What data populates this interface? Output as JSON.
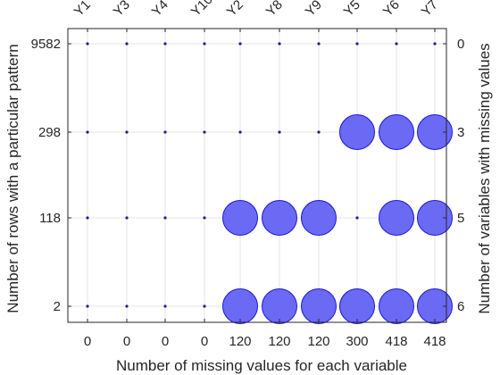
{
  "chart_data": {
    "type": "scatter",
    "title": "",
    "xlabel": "Number of missing values for each variable",
    "ylabel_left": "Number of rows with a particular pattern",
    "ylabel_right": "Number of variables with missing values",
    "variables": [
      "Y1",
      "Y3",
      "Y4",
      "Y10",
      "Y2",
      "Y8",
      "Y9",
      "Y5",
      "Y6",
      "Y7"
    ],
    "missing_counts": [
      "0",
      "0",
      "0",
      "0",
      "120",
      "120",
      "120",
      "300",
      "418",
      "418"
    ],
    "patterns": [
      {
        "rows": "9582",
        "n_missing_vars": "0",
        "missing": [
          0,
          0,
          0,
          0,
          0,
          0,
          0,
          0,
          0,
          0
        ]
      },
      {
        "rows": "298",
        "n_missing_vars": "3",
        "missing": [
          0,
          0,
          0,
          0,
          0,
          0,
          0,
          1,
          1,
          1
        ]
      },
      {
        "rows": "118",
        "n_missing_vars": "5",
        "missing": [
          0,
          0,
          0,
          0,
          1,
          1,
          1,
          0,
          1,
          1
        ]
      },
      {
        "rows": "2",
        "n_missing_vars": "6",
        "missing": [
          0,
          0,
          0,
          0,
          1,
          1,
          1,
          1,
          1,
          1
        ]
      }
    ],
    "grid": true,
    "colors": {
      "missing_fill": "#6a6af5",
      "missing_edge": "#1a1ad6",
      "present_dot": "#1f1f8a",
      "grid": "#e6e6e6",
      "axis": "#262626"
    }
  }
}
